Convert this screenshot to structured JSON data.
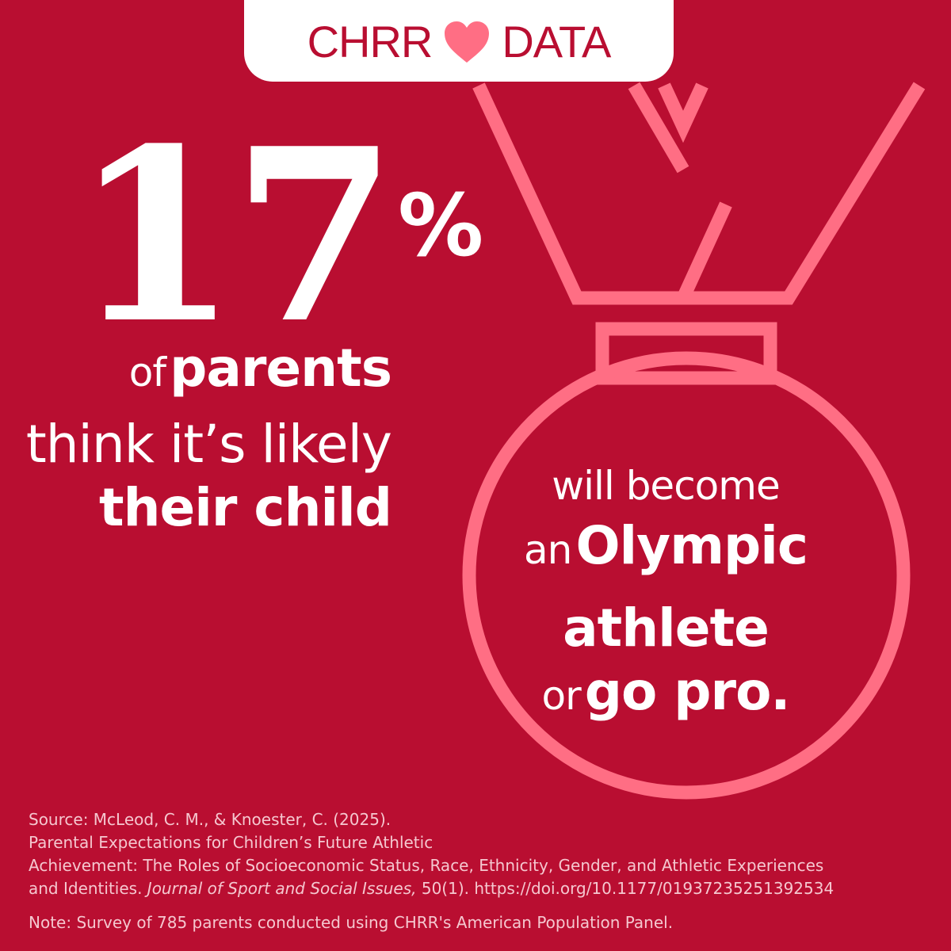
{
  "brand": {
    "left_word": "CHRR",
    "right_word": "DATA",
    "heart_icon": "heart-icon",
    "brand_color": "#b90e31",
    "accent_color": "#ff6e84"
  },
  "stat": {
    "number": "17",
    "percent_sign": "%",
    "line1_pre": "of",
    "line1_bold": "parents",
    "line2": "think it’s likely",
    "line3_bold": "their child"
  },
  "medal_text": {
    "line1": "will become",
    "line2_pre": "an",
    "line2_bold": "Olympic",
    "line3_bold": "athlete",
    "line4_pre": "or",
    "line4_bold": "go pro."
  },
  "medal_icon": "medal-icon",
  "source": {
    "line1": "Source: McLeod, C. M., & Knoester, C. (2025).",
    "line2": "Parental Expectations for Children’s Future Athletic",
    "line3": "Achievement: The Roles of Socioeconomic Status, Race, Ethnicity, Gender, and Athletic Experiences",
    "line4_pre": "and Identities.",
    "journal": "Journal of Sport and Social Issues,",
    "line4_post": "50(1). https://doi.org/10.1177/01937235251392534"
  },
  "note": "Note: Survey of 785 parents conducted using CHRR's American Population Panel."
}
